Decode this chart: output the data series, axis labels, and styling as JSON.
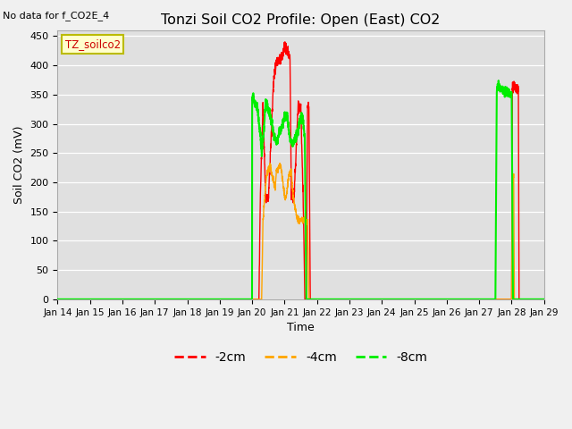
{
  "title": "Tonzi Soil CO2 Profile: Open (East) CO2",
  "no_data_label": "No data for f_CO2E_4",
  "station_label": "TZ_soilco2",
  "ylabel": "Soil CO2 (mV)",
  "xlabel": "Time",
  "ylim": [
    0,
    460
  ],
  "yticks": [
    0,
    50,
    100,
    150,
    200,
    250,
    300,
    350,
    400,
    450
  ],
  "xtick_labels": [
    "Jan 14",
    "Jan 15",
    "Jan 16",
    "Jan 17",
    "Jan 18",
    "Jan 19",
    "Jan 20",
    "Jan 21",
    "Jan 22",
    "Jan 23",
    "Jan 24",
    "Jan 25",
    "Jan 26",
    "Jan 27",
    "Jan 28",
    "Jan 29"
  ],
  "colors": {
    "red": "#ff0000",
    "orange": "#ffa500",
    "green": "#00ee00",
    "plot_bg": "#e0e0e0",
    "grid": "#ffffff",
    "fig_bg": "#f0f0f0"
  },
  "legend_entries": [
    "-2cm",
    "-4cm",
    "-8cm"
  ],
  "legend_colors": [
    "#ff0000",
    "#ffa500",
    "#00ee00"
  ],
  "figsize": [
    6.4,
    4.8
  ],
  "dpi": 100
}
